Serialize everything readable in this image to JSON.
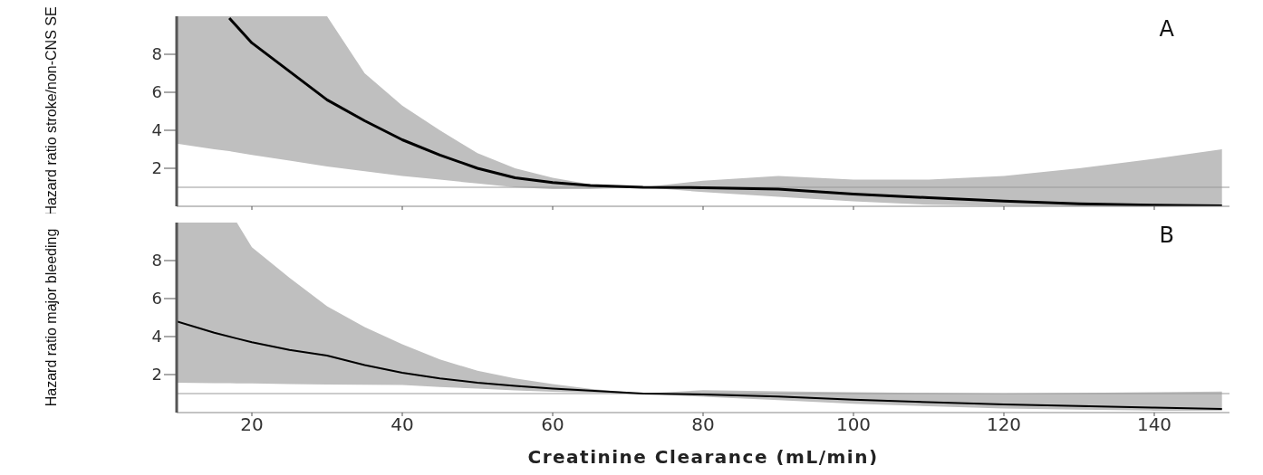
{
  "chart_data": [
    {
      "type": "line",
      "ylabel": "Hazard ratio stroke/non-CNS SE",
      "annotations": [
        "A"
      ],
      "tick_labels": "y",
      "x": [
        10,
        15,
        17,
        20,
        25,
        30,
        35,
        40,
        45,
        50,
        55,
        60,
        65,
        72,
        80,
        90,
        100,
        110,
        120,
        130,
        140,
        149
      ],
      "xlim": [
        10,
        150
      ],
      "xticks": [
        20,
        40,
        60,
        80,
        100,
        120,
        140
      ],
      "ylim": [
        0,
        10
      ],
      "yticks": [
        2,
        4,
        6,
        8
      ],
      "ref_lines": [
        {
          "axis": "y",
          "value": 1,
          "color": "#999999"
        }
      ],
      "series": [
        {
          "color": "#000000",
          "values": [
            null,
            null,
            9.9,
            8.6,
            7.1,
            5.6,
            4.5,
            3.5,
            2.7,
            2.0,
            1.5,
            1.25,
            1.1,
            1.0,
            0.98,
            0.9,
            0.64,
            0.45,
            0.27,
            0.13,
            0.06,
            0.02
          ],
          "lower": [
            3.3,
            3.0,
            2.9,
            2.7,
            2.4,
            2.1,
            1.85,
            1.6,
            1.4,
            1.2,
            1.0,
            0.9,
            0.9,
            1.0,
            0.75,
            0.5,
            0.26,
            0.08,
            0.02,
            0,
            0,
            0
          ],
          "upper": [
            10,
            10,
            10,
            10,
            10,
            10,
            7.0,
            5.3,
            4.0,
            2.8,
            2.0,
            1.5,
            1.15,
            1.0,
            1.35,
            1.6,
            1.4,
            1.4,
            1.6,
            2.0,
            2.5,
            3.0
          ]
        }
      ]
    },
    {
      "type": "line",
      "ylabel": "Hazard ratio major bleeding",
      "xlabel": "Creatinine Clearance  (mL/min)",
      "annotations": [
        "B"
      ],
      "x": [
        10,
        15,
        18,
        20,
        25,
        30,
        35,
        40,
        45,
        50,
        55,
        60,
        65,
        72,
        80,
        90,
        100,
        110,
        120,
        130,
        140,
        149
      ],
      "xlim": [
        10,
        150
      ],
      "xticks": [
        20,
        40,
        60,
        80,
        100,
        120,
        140
      ],
      "ylim": [
        0,
        10
      ],
      "yticks": [
        2,
        4,
        6,
        8
      ],
      "ref_lines": [
        {
          "axis": "y",
          "value": 1,
          "color": "#999999"
        }
      ],
      "series": [
        {
          "color": "#000000",
          "values": [
            4.8,
            4.2,
            3.9,
            3.7,
            3.3,
            3.0,
            2.5,
            2.1,
            1.8,
            1.57,
            1.4,
            1.26,
            1.15,
            1.0,
            0.95,
            0.85,
            0.68,
            0.55,
            0.43,
            0.34,
            0.26,
            0.19
          ],
          "lower": [
            1.57,
            1.55,
            1.54,
            1.53,
            1.5,
            1.48,
            1.46,
            1.45,
            1.35,
            1.26,
            1.17,
            1.1,
            1.05,
            1.0,
            0.83,
            0.65,
            0.47,
            0.33,
            0.21,
            0.15,
            0.1,
            0.1
          ],
          "upper": [
            10,
            10,
            10,
            8.7,
            7.1,
            5.6,
            4.5,
            3.6,
            2.8,
            2.2,
            1.8,
            1.5,
            1.25,
            1.0,
            1.18,
            1.12,
            1.07,
            1.03,
            1.0,
            1.03,
            1.07,
            1.11
          ]
        }
      ]
    }
  ]
}
